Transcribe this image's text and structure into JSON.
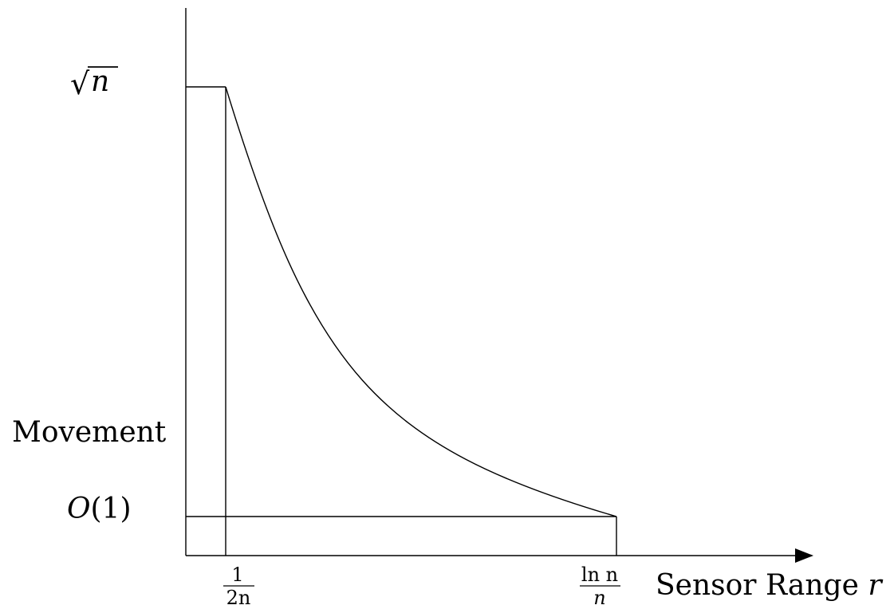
{
  "diagram": {
    "labels": {
      "y_top": {
        "prefix": "√",
        "var": "n"
      },
      "y_title": "Movement",
      "y_bottom": {
        "func": "O",
        "arg": "(1)"
      },
      "x_tick_left": {
        "numerator": "1",
        "denominator": "2n"
      },
      "x_tick_right": {
        "numerator": "ln n",
        "denominator": "n"
      },
      "x_title": {
        "text": "Sensor Range ",
        "var": "r"
      }
    }
  }
}
